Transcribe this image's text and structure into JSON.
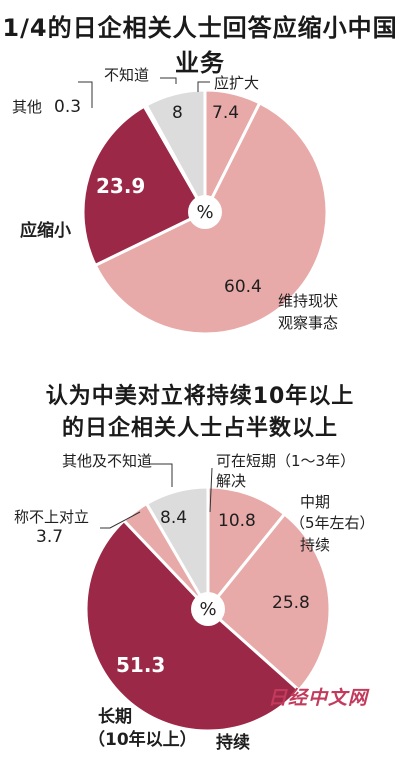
{
  "chart_data": [
    {
      "type": "pie",
      "title": "1/4的日企相关人士回答应缩小中国业务",
      "center_label": "%",
      "slices": [
        {
          "label": "应扩大",
          "value": 7.4,
          "color": "#e7aaa8"
        },
        {
          "label": "维持现状观察事态",
          "label_lines": [
            "维持现状",
            "观察事态"
          ],
          "value": 60.4,
          "color": "#e7aaa8"
        },
        {
          "label": "应缩小",
          "value": 23.9,
          "color": "#9c2847"
        },
        {
          "label": "其他",
          "value": 0.3,
          "color": "#e7aaa8"
        },
        {
          "label": "不知道",
          "value": 8,
          "color": "#dcdcdc"
        }
      ]
    },
    {
      "type": "pie",
      "title": "认为中美对立将持续10年以上的日企相关人士占半数以上",
      "title_lines": [
        "认为中美对立将持续10年以上",
        "的日企相关人士占半数以上"
      ],
      "center_label": "%",
      "slices": [
        {
          "label": "可在短期（1～3年）解决",
          "label_lines": [
            "可在短期（1～3年）",
            "解决"
          ],
          "value": 10.8,
          "color": "#e7aaa8"
        },
        {
          "label": "中期（5年左右）持续",
          "label_lines": [
            "中期",
            "（5年左右）",
            "持续"
          ],
          "value": 25.8,
          "color": "#e7aaa8"
        },
        {
          "label": "长期（10年以上）持续",
          "label_lines": [
            "长期",
            "（10年以上）",
            "持续"
          ],
          "value": 51.3,
          "color": "#9c2847"
        },
        {
          "label": "称不上对立",
          "value": 3.7,
          "color": "#e7aaa8"
        },
        {
          "label": "其他及不知道",
          "value": 8.4,
          "color": "#dcdcdc"
        }
      ]
    }
  ],
  "watermark": "日经中文网"
}
